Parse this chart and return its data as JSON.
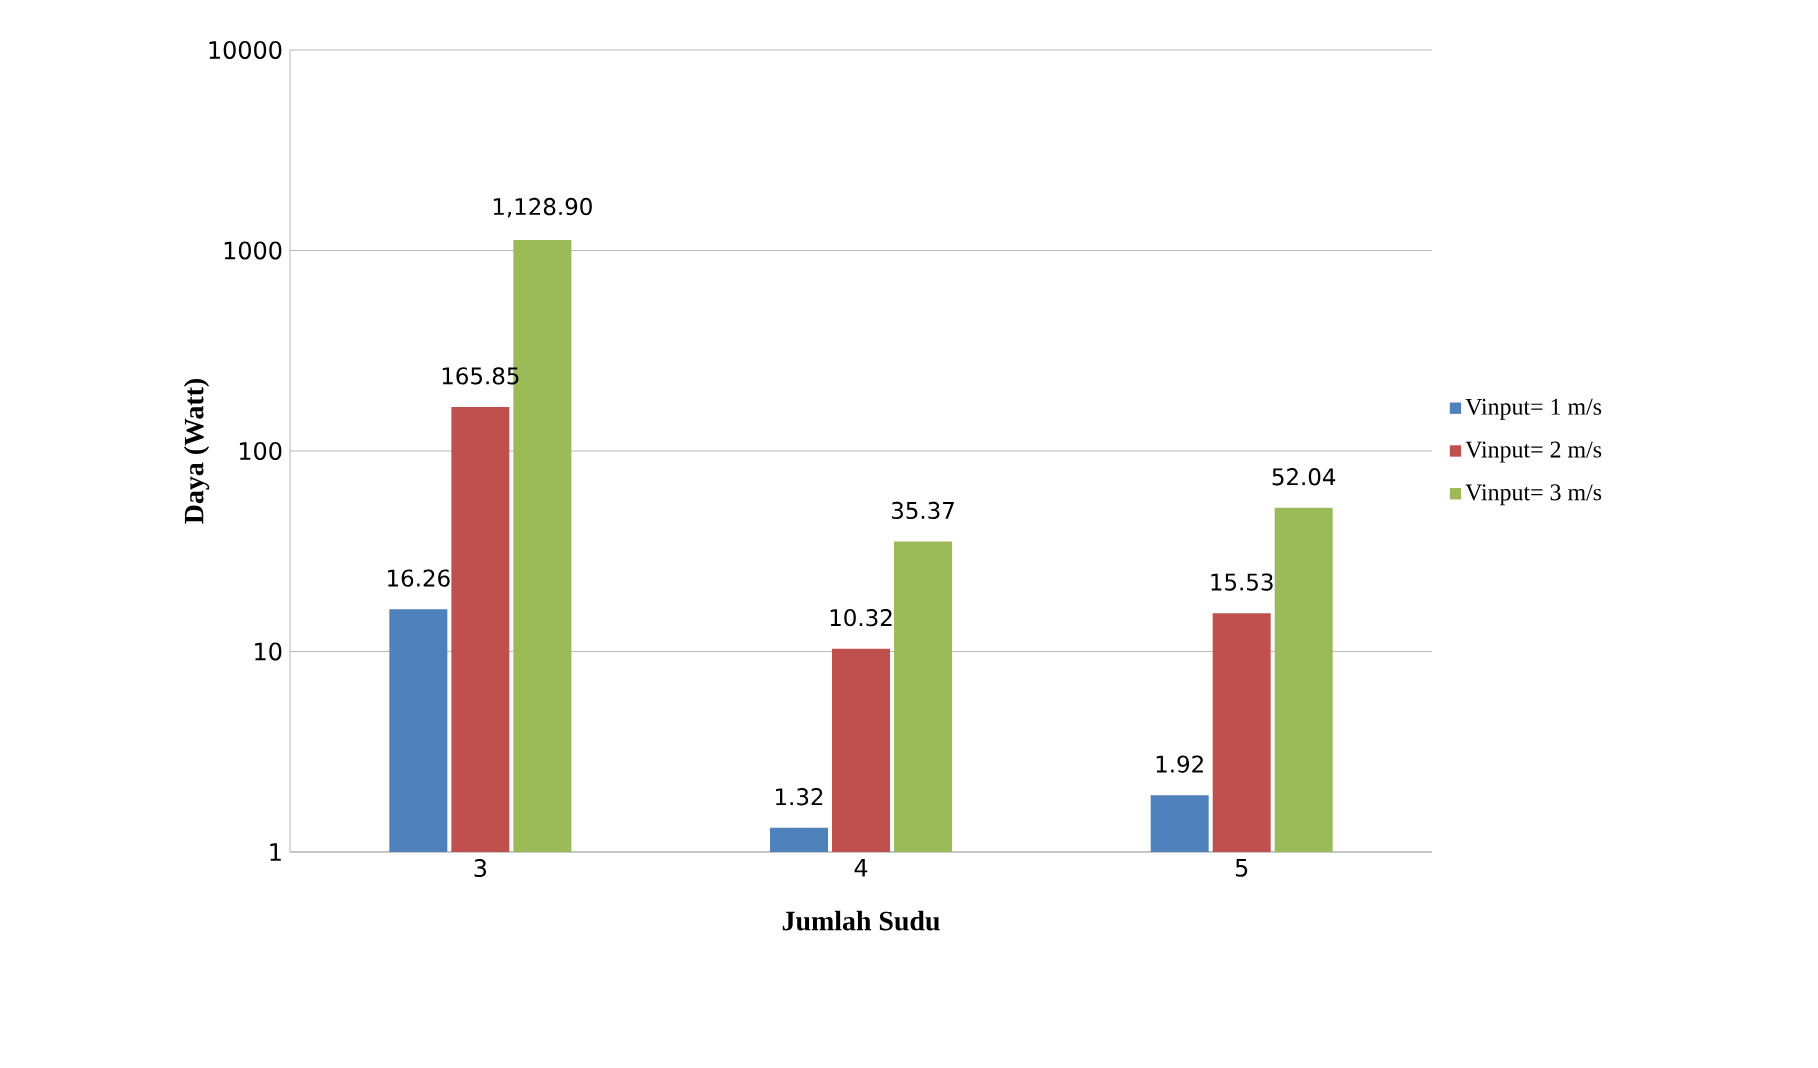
{
  "chart_data": {
    "type": "bar",
    "xlabel": "Jumlah Sudu",
    "ylabel": "Daya (Watt)",
    "categories": [
      "3",
      "4",
      "5"
    ],
    "series": [
      {
        "name": "Vinput= 1 m/s",
        "color": "#4f81bd",
        "values": [
          16.26,
          1.32,
          1.92
        ],
        "value_labels": [
          "16.26",
          "1.32",
          "1.92"
        ]
      },
      {
        "name": "Vinput= 2 m/s",
        "color": "#c0504d",
        "values": [
          165.85,
          10.32,
          15.53
        ],
        "value_labels": [
          "165.85",
          "10.32",
          "15.53"
        ]
      },
      {
        "name": "Vinput= 3 m/s",
        "color": "#9bbb59",
        "values": [
          1128.9,
          35.37,
          52.04
        ],
        "value_labels": [
          "1,128.90",
          "35.37",
          "52.04"
        ]
      }
    ],
    "log": "y",
    "ylim": [
      1,
      10000
    ],
    "yticks": [
      1,
      10,
      100,
      1000,
      10000
    ],
    "grid": "y",
    "legend": "right"
  }
}
